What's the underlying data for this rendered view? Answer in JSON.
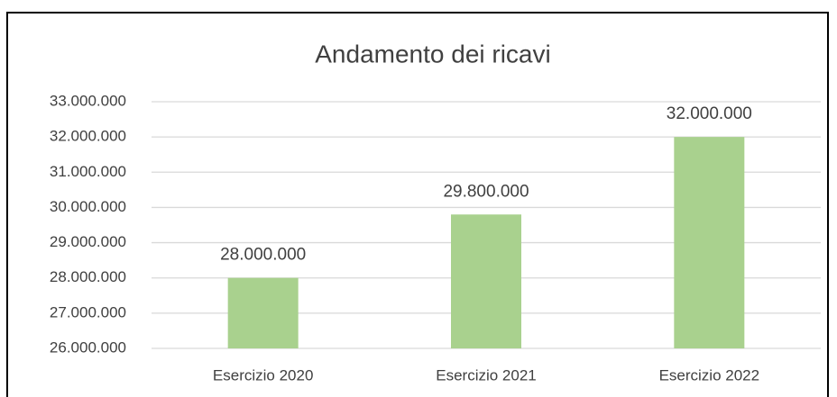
{
  "chart_data": {
    "type": "bar",
    "title": "Andamento dei ricavi",
    "categories": [
      "Esercizio 2020",
      "Esercizio 2021",
      "Esercizio 2022"
    ],
    "values": [
      28000000,
      29800000,
      32000000
    ],
    "value_labels": [
      "28.000.000",
      "29.800.000",
      "32.000.000"
    ],
    "color": "#a9d18e",
    "ylim": [
      26000000,
      33000000
    ],
    "yticks": [
      {
        "value": 26000000,
        "label": "26.000.000"
      },
      {
        "value": 27000000,
        "label": "27.000.000"
      },
      {
        "value": 28000000,
        "label": "28.000.000"
      },
      {
        "value": 29000000,
        "label": "29.000.000"
      },
      {
        "value": 30000000,
        "label": "30.000.000"
      },
      {
        "value": 31000000,
        "label": "31.000.000"
      },
      {
        "value": 32000000,
        "label": "32.000.000"
      },
      {
        "value": 33000000,
        "label": "33.000.000"
      }
    ],
    "grid": true
  }
}
